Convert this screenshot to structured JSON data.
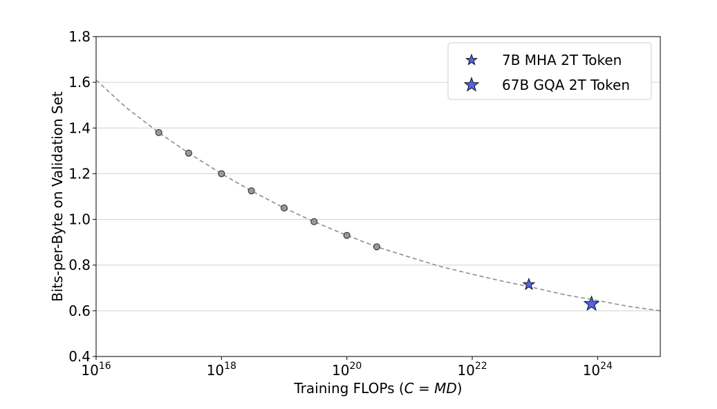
{
  "chart_data": {
    "type": "scatter",
    "xlabel_parts": [
      "Training FLOPs (",
      "C",
      " = ",
      "MD",
      ")"
    ],
    "ylabel": "Bits-per-Byte on Validation Set",
    "xscale": "log",
    "xlim": [
      1e+16,
      1e+25
    ],
    "ylim": [
      0.4,
      1.8
    ],
    "x_tick_labels": [
      {
        "base": "10",
        "exp": "16",
        "value": 1e+16
      },
      {
        "base": "10",
        "exp": "18",
        "value": 1e+18
      },
      {
        "base": "10",
        "exp": "20",
        "value": 1e+20
      },
      {
        "base": "10",
        "exp": "22",
        "value": 1e+22
      },
      {
        "base": "10",
        "exp": "24",
        "value": 1e+24
      }
    ],
    "y_ticks": [
      0.4,
      0.6,
      0.8,
      1.0,
      1.2,
      1.4,
      1.6,
      1.8
    ],
    "y_tick_labels": [
      "0.4",
      "0.6",
      "0.8",
      "1.0",
      "1.2",
      "1.4",
      "1.6",
      "1.8"
    ],
    "grid": "horizontal",
    "legend_position": "top-right",
    "series": [
      {
        "marker": "circle",
        "color": "#999999",
        "points": [
          {
            "x": 1e+17,
            "y": 1.38
          },
          {
            "x": 3e+17,
            "y": 1.29
          },
          {
            "x": 1e+18,
            "y": 1.2
          },
          {
            "x": 3e+18,
            "y": 1.125
          },
          {
            "x": 1e+19,
            "y": 1.05
          },
          {
            "x": 3e+19,
            "y": 0.99
          },
          {
            "x": 1e+20,
            "y": 0.93
          },
          {
            "x": 3e+20,
            "y": 0.88
          }
        ]
      },
      {
        "name": "7B MHA 2T Token",
        "marker": "star-small",
        "color": "#5561e8",
        "points": [
          {
            "x": 8e+22,
            "y": 0.715
          }
        ]
      },
      {
        "name": "67B GQA 2T Token",
        "marker": "star-large",
        "color": "#5561e8",
        "points": [
          {
            "x": 8e+23,
            "y": 0.63
          }
        ]
      }
    ],
    "fit_curve": {
      "style": "dashed",
      "color": "#8c8c8c",
      "points": [
        {
          "x": 1e+16,
          "y": 1.61
        },
        {
          "x": 3e+16,
          "y": 1.49
        },
        {
          "x": 1e+17,
          "y": 1.38
        },
        {
          "x": 3e+17,
          "y": 1.29
        },
        {
          "x": 1e+18,
          "y": 1.2
        },
        {
          "x": 3e+18,
          "y": 1.125
        },
        {
          "x": 1e+19,
          "y": 1.05
        },
        {
          "x": 3e+19,
          "y": 0.99
        },
        {
          "x": 1e+20,
          "y": 0.93
        },
        {
          "x": 3e+20,
          "y": 0.88
        },
        {
          "x": 1e+21,
          "y": 0.835
        },
        {
          "x": 3e+21,
          "y": 0.795
        },
        {
          "x": 1e+22,
          "y": 0.76
        },
        {
          "x": 3e+22,
          "y": 0.73
        },
        {
          "x": 1e+23,
          "y": 0.7
        },
        {
          "x": 3e+23,
          "y": 0.67
        },
        {
          "x": 1e+24,
          "y": 0.645
        },
        {
          "x": 3e+24,
          "y": 0.62
        },
        {
          "x": 1e+25,
          "y": 0.6
        }
      ]
    }
  }
}
